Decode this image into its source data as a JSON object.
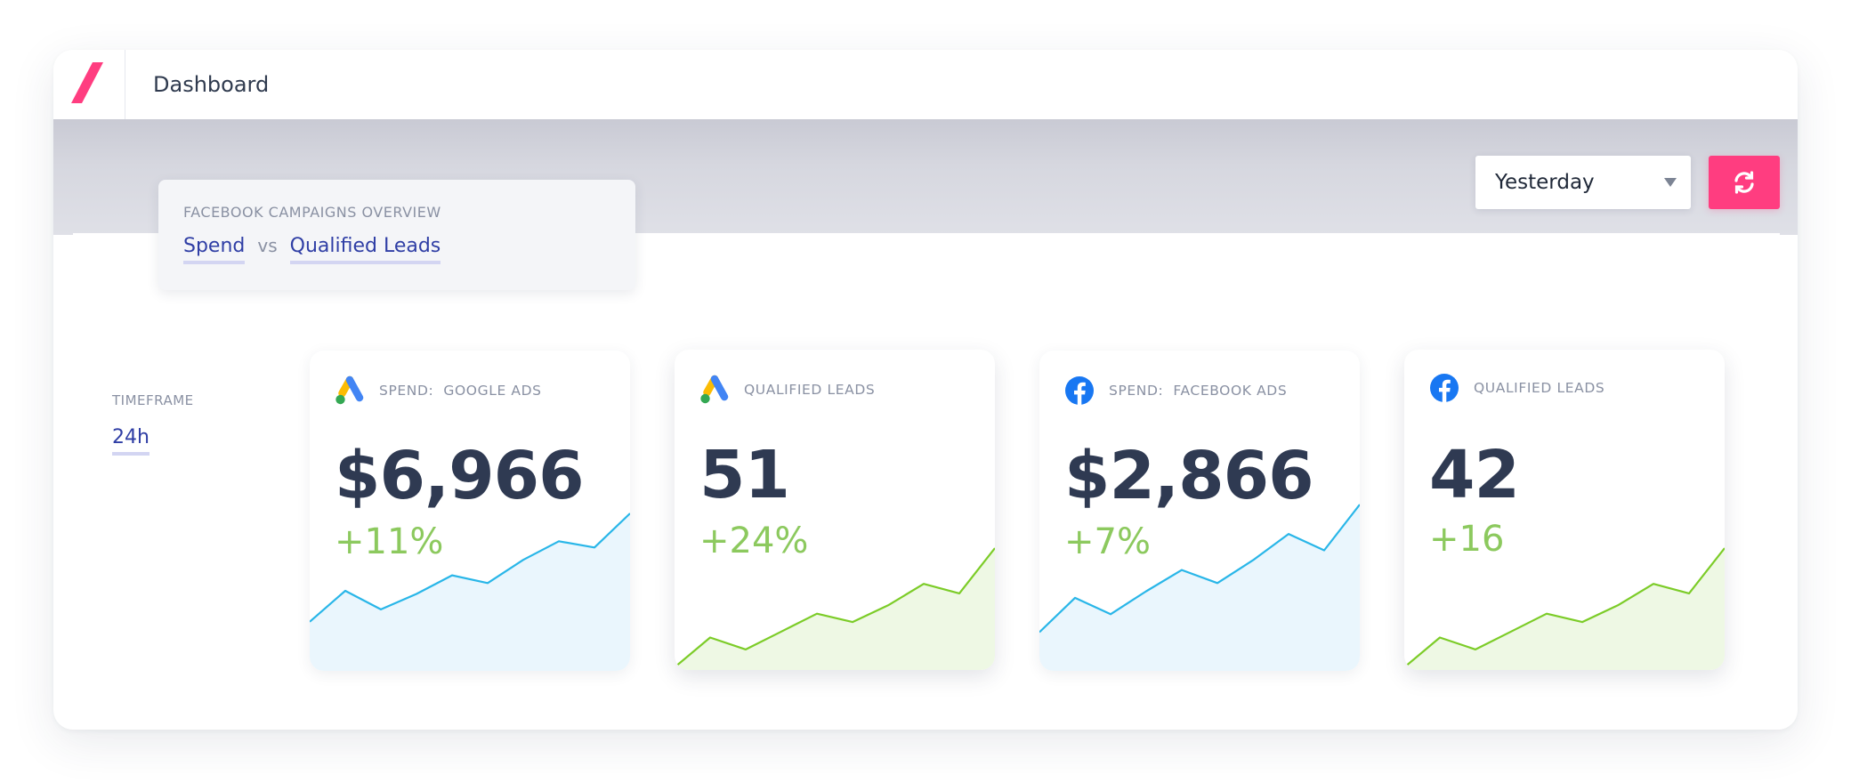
{
  "app": {
    "title": "Dashboard",
    "logo": "slash-logo",
    "brand_color": "#ff3d80"
  },
  "overview": {
    "title": "FACEBOOK CAMPAIGNS OVERVIEW",
    "tab_spend": "Spend",
    "separator": "vs",
    "tab_leads": "Qualified Leads"
  },
  "period": {
    "selected": "Yesterday"
  },
  "refresh": {
    "icon": "refresh-icon"
  },
  "timeframe": {
    "label": "TIMEFRAME",
    "value": "24h"
  },
  "cards": [
    {
      "icon": "google-ads-icon",
      "title": "SPEND:  GOOGLE ADS",
      "value": "$6,966",
      "change": "+11%",
      "line_color": "#29b6e8",
      "fill_color": "#eaf6fd",
      "trend": [
        0.7,
        0.5,
        0.62,
        0.52,
        0.4,
        0.45,
        0.3,
        0.18,
        0.22,
        0.0
      ]
    },
    {
      "icon": "google-ads-icon",
      "title": "QUALIFIED LEADS",
      "value": "51",
      "change": "+24%",
      "line_color": "#7ccc28",
      "fill_color": "#eef8e4",
      "trend": [
        1.0,
        0.75,
        0.85,
        0.7,
        0.55,
        0.62,
        0.48,
        0.3,
        0.38,
        0.0
      ]
    },
    {
      "icon": "facebook-icon",
      "title": "SPEND:  FACEBOOK ADS",
      "value": "$2,866",
      "change": "+7%",
      "line_color": "#29b6e8",
      "fill_color": "#eaf6fd",
      "trend": [
        0.78,
        0.57,
        0.67,
        0.53,
        0.4,
        0.48,
        0.34,
        0.18,
        0.28,
        0.0
      ]
    },
    {
      "icon": "facebook-icon",
      "title": "QUALIFIED LEADS",
      "value": "42",
      "change": "+16",
      "line_color": "#7ccc28",
      "fill_color": "#eef8e4",
      "trend": [
        1.0,
        0.75,
        0.85,
        0.7,
        0.55,
        0.62,
        0.48,
        0.3,
        0.38,
        0.0
      ]
    }
  ]
}
